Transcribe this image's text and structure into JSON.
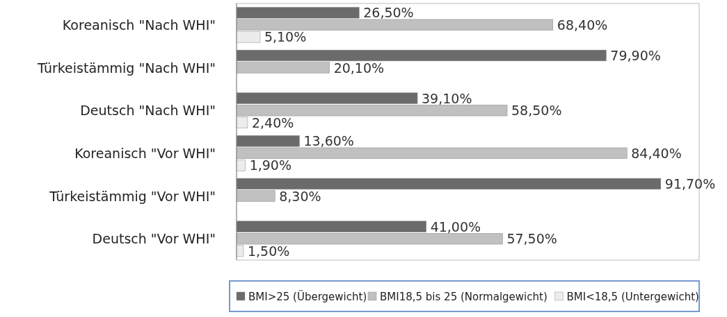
{
  "chart_data": {
    "type": "bar",
    "orientation": "horizontal",
    "categories": [
      "Koreanisch \"Nach WHI\"",
      "Türkeistämmig \"Nach WHI\"",
      "Deutsch \"Nach WHI\"",
      "Koreanisch \"Vor WHI\"",
      "Türkeistämmig \"Vor WHI\"",
      "Deutsch \"Vor WHI\""
    ],
    "series": [
      {
        "name": "BMI>25 (Übergewicht)",
        "color": "#6b6b6b",
        "values": [
          26.5,
          79.9,
          39.1,
          13.6,
          91.7,
          41.0
        ],
        "value_labels": [
          "26,50%",
          "79,90%",
          "39,10%",
          "13,60%",
          "91,70%",
          "41,00%"
        ]
      },
      {
        "name": "BMI18,5 bis 25 (Normalgewicht)",
        "color": "#c0c0c0",
        "values": [
          68.4,
          20.1,
          58.5,
          84.4,
          8.3,
          57.5
        ],
        "value_labels": [
          "68,40%",
          "20,10%",
          "58,50%",
          "84,40%",
          "8,30%",
          "57,50%"
        ]
      },
      {
        "name": "BMI<18,5 (Untergewicht)",
        "color": "#ececec",
        "values": [
          5.1,
          null,
          2.4,
          1.9,
          null,
          1.5
        ],
        "value_labels": [
          "5,10%",
          null,
          "2,40%",
          "1,90%",
          null,
          "1,50%"
        ]
      }
    ],
    "xlim": [
      0,
      100
    ],
    "tick_labels": "y",
    "legend": "bottom"
  }
}
